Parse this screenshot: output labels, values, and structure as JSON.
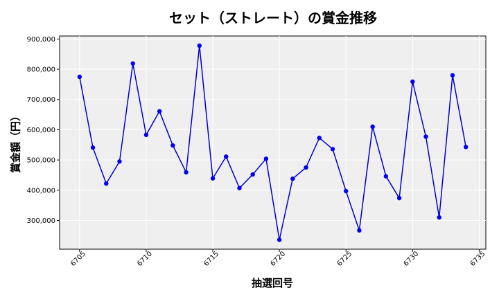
{
  "chart_data": {
    "type": "line",
    "title": "セット（ストレート）の賞金推移",
    "xlabel": "抽選回号",
    "ylabel": "賞金額（円）",
    "xlim": [
      6703.5,
      6735.5
    ],
    "ylim": [
      205000,
      910000
    ],
    "x_ticks": [
      6705,
      6710,
      6715,
      6720,
      6725,
      6730,
      6735
    ],
    "y_ticks": [
      300000,
      400000,
      500000,
      600000,
      700000,
      800000,
      900000
    ],
    "y_tick_labels": [
      "300,000",
      "400,000",
      "500,000",
      "600,000",
      "700,000",
      "800,000",
      "900,000"
    ],
    "grid": true,
    "line_color": "#0000cc",
    "marker_color": "#0000ee",
    "plot_background": "#efefef",
    "series": [
      {
        "x": [
          6705,
          6706,
          6707,
          6708,
          6709,
          6710,
          6711,
          6712,
          6713,
          6714,
          6715,
          6716,
          6717,
          6718,
          6719,
          6720,
          6721,
          6722,
          6723,
          6724,
          6725,
          6726,
          6727,
          6728,
          6729,
          6730,
          6731,
          6732,
          6733,
          6734
        ],
        "values": [
          775000,
          541000,
          422000,
          495000,
          819000,
          583000,
          661000,
          548000,
          459000,
          878000,
          439000,
          511000,
          407000,
          452000,
          504000,
          236000,
          438000,
          475000,
          573000,
          536000,
          397000,
          267000,
          610000,
          446000,
          374000,
          759000,
          577000,
          310000,
          780000,
          543000
        ]
      }
    ]
  }
}
